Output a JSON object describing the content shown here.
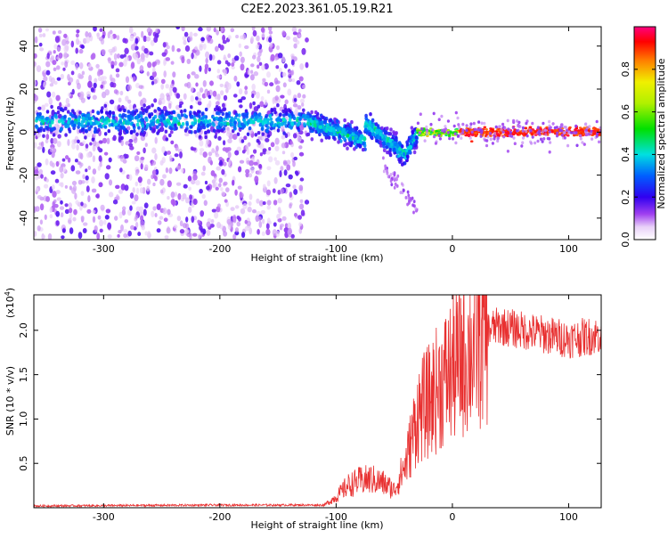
{
  "title": "C2E2.2023.361.05.19.R21",
  "chart_data": [
    {
      "type": "heatmap",
      "xlabel": "Height of straight line (km)",
      "ylabel": "Frequency (Hz)",
      "xlim": [
        -360,
        128
      ],
      "ylim": [
        -50,
        49
      ],
      "xticks": [
        -300,
        -200,
        -100,
        0,
        100
      ],
      "yticks": [
        -40,
        -20,
        0,
        20,
        40
      ],
      "grid": false,
      "colorbar": {
        "label": "Normalized spectral amplitude",
        "range": [
          0,
          1
        ],
        "ticks": [
          "0.0",
          "0.2",
          "0.4",
          "0.6",
          "0.8"
        ],
        "colormap": "rainbow"
      },
      "regions": [
        {
          "x": [
            -360,
            -125
          ],
          "signal_frequency": 5,
          "amplitude": 0.35,
          "scatter_spread": 49
        },
        {
          "x": [
            -125,
            -30
          ],
          "signal_frequency": "0 to -15",
          "amplitude": 0.4
        },
        {
          "x": [
            -30,
            128
          ],
          "signal_frequency": 0,
          "amplitude": 0.95
        }
      ]
    },
    {
      "type": "line",
      "xlabel": "Height of straight line (km)",
      "ylabel": "SNR (10 * v/v)",
      "yscale_label": "(x10",
      "yscale_exp": "4",
      "xlim": [
        -360,
        128
      ],
      "ylim": [
        0,
        2.4
      ],
      "xticks": [
        -300,
        -200,
        -100,
        0,
        100
      ],
      "yticks": [
        0.5,
        1.0,
        1.5,
        2.0
      ],
      "color": "#e83030",
      "series": [
        {
          "x": [
            -360,
            -200,
            -110,
            -100,
            -90,
            -80,
            -70,
            -60,
            -50,
            -40,
            -30,
            -20,
            -10,
            0,
            10,
            20,
            30,
            40,
            60,
            80,
            100,
            128
          ],
          "y": [
            0.02,
            0.03,
            0.03,
            0.12,
            0.25,
            0.3,
            0.32,
            0.28,
            0.2,
            0.5,
            1.05,
            1.2,
            1.4,
            1.55,
            1.7,
            1.85,
            2.0,
            2.05,
            2.0,
            1.95,
            1.9,
            1.95
          ]
        }
      ]
    }
  ]
}
